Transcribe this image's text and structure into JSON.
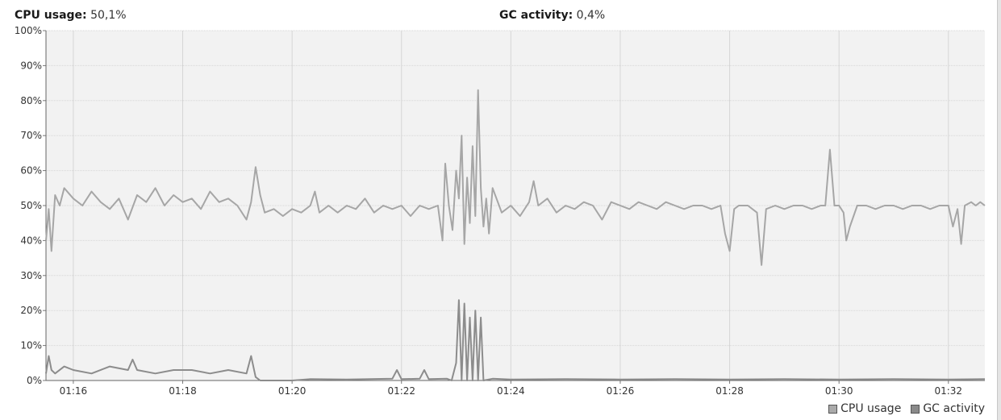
{
  "header": {
    "cpu_label": "CPU usage:",
    "cpu_value": "50,1%",
    "gc_label": "GC activity:",
    "gc_value": "0,4%"
  },
  "legend": {
    "cpu": "CPU usage",
    "gc": "GC activity"
  },
  "colors": {
    "cpu_series": "#a6a6a6",
    "gc_series": "#8c8c8c",
    "plot_background": "#f2f2f2",
    "grid": "#d6d6d6"
  },
  "chart_data": {
    "type": "line",
    "x_axis": {
      "unit": "time (hh:mm)",
      "min": "01:15:30",
      "max": "01:32:40"
    },
    "y_axis": {
      "min": 0,
      "max": 100,
      "unit": "%"
    },
    "y_ticks": [
      "0%",
      "10%",
      "20%",
      "30%",
      "40%",
      "50%",
      "60%",
      "70%",
      "80%",
      "90%",
      "100%"
    ],
    "x_ticks": [
      "01:16",
      "01:18",
      "01:20",
      "01:22",
      "01:24",
      "01:26",
      "01:28",
      "01:30",
      "01:32"
    ],
    "grid": true,
    "legend_position": "bottom-right",
    "series": [
      {
        "name": "CPU usage",
        "points": [
          [
            "01:15:30",
            40
          ],
          [
            "01:15:33",
            49
          ],
          [
            "01:15:36",
            37
          ],
          [
            "01:15:40",
            53
          ],
          [
            "01:15:45",
            50
          ],
          [
            "01:15:50",
            55
          ],
          [
            "01:16:00",
            52
          ],
          [
            "01:16:10",
            50
          ],
          [
            "01:16:20",
            54
          ],
          [
            "01:16:30",
            51
          ],
          [
            "01:16:40",
            49
          ],
          [
            "01:16:50",
            52
          ],
          [
            "01:17:00",
            46
          ],
          [
            "01:17:10",
            53
          ],
          [
            "01:17:20",
            51
          ],
          [
            "01:17:30",
            55
          ],
          [
            "01:17:40",
            50
          ],
          [
            "01:17:50",
            53
          ],
          [
            "01:18:00",
            51
          ],
          [
            "01:18:10",
            52
          ],
          [
            "01:18:20",
            49
          ],
          [
            "01:18:30",
            54
          ],
          [
            "01:18:40",
            51
          ],
          [
            "01:18:50",
            52
          ],
          [
            "01:19:00",
            50
          ],
          [
            "01:19:10",
            46
          ],
          [
            "01:19:15",
            51
          ],
          [
            "01:19:20",
            61
          ],
          [
            "01:19:25",
            53
          ],
          [
            "01:19:30",
            48
          ],
          [
            "01:19:40",
            49
          ],
          [
            "01:19:50",
            47
          ],
          [
            "01:20:00",
            49
          ],
          [
            "01:20:10",
            48
          ],
          [
            "01:20:20",
            50
          ],
          [
            "01:20:25",
            54
          ],
          [
            "01:20:30",
            48
          ],
          [
            "01:20:40",
            50
          ],
          [
            "01:20:50",
            48
          ],
          [
            "01:21:00",
            50
          ],
          [
            "01:21:10",
            49
          ],
          [
            "01:21:20",
            52
          ],
          [
            "01:21:30",
            48
          ],
          [
            "01:21:40",
            50
          ],
          [
            "01:21:50",
            49
          ],
          [
            "01:22:00",
            50
          ],
          [
            "01:22:10",
            47
          ],
          [
            "01:22:20",
            50
          ],
          [
            "01:22:30",
            49
          ],
          [
            "01:22:40",
            50
          ],
          [
            "01:22:45",
            40
          ],
          [
            "01:22:48",
            62
          ],
          [
            "01:22:52",
            50
          ],
          [
            "01:22:56",
            43
          ],
          [
            "01:23:00",
            60
          ],
          [
            "01:23:03",
            52
          ],
          [
            "01:23:06",
            70
          ],
          [
            "01:23:09",
            39
          ],
          [
            "01:23:12",
            58
          ],
          [
            "01:23:15",
            45
          ],
          [
            "01:23:18",
            67
          ],
          [
            "01:23:21",
            47
          ],
          [
            "01:23:24",
            83
          ],
          [
            "01:23:27",
            55
          ],
          [
            "01:23:30",
            44
          ],
          [
            "01:23:33",
            52
          ],
          [
            "01:23:36",
            42
          ],
          [
            "01:23:40",
            55
          ],
          [
            "01:23:50",
            48
          ],
          [
            "01:24:00",
            50
          ],
          [
            "01:24:10",
            47
          ],
          [
            "01:24:20",
            51
          ],
          [
            "01:24:25",
            57
          ],
          [
            "01:24:30",
            50
          ],
          [
            "01:24:40",
            52
          ],
          [
            "01:24:50",
            48
          ],
          [
            "01:25:00",
            50
          ],
          [
            "01:25:10",
            49
          ],
          [
            "01:25:20",
            51
          ],
          [
            "01:25:30",
            50
          ],
          [
            "01:25:40",
            46
          ],
          [
            "01:25:50",
            51
          ],
          [
            "01:26:00",
            50
          ],
          [
            "01:26:10",
            49
          ],
          [
            "01:26:20",
            51
          ],
          [
            "01:26:30",
            50
          ],
          [
            "01:26:40",
            49
          ],
          [
            "01:26:50",
            51
          ],
          [
            "01:27:00",
            50
          ],
          [
            "01:27:10",
            49
          ],
          [
            "01:27:20",
            50
          ],
          [
            "01:27:30",
            50
          ],
          [
            "01:27:40",
            49
          ],
          [
            "01:27:50",
            50
          ],
          [
            "01:27:55",
            42
          ],
          [
            "01:28:00",
            37
          ],
          [
            "01:28:05",
            49
          ],
          [
            "01:28:10",
            50
          ],
          [
            "01:28:20",
            50
          ],
          [
            "01:28:30",
            48
          ],
          [
            "01:28:35",
            33
          ],
          [
            "01:28:40",
            49
          ],
          [
            "01:28:50",
            50
          ],
          [
            "01:29:00",
            49
          ],
          [
            "01:29:10",
            50
          ],
          [
            "01:29:20",
            50
          ],
          [
            "01:29:30",
            49
          ],
          [
            "01:29:40",
            50
          ],
          [
            "01:29:45",
            50
          ],
          [
            "01:29:50",
            66
          ],
          [
            "01:29:55",
            50
          ],
          [
            "01:30:00",
            50
          ],
          [
            "01:30:05",
            48
          ],
          [
            "01:30:08",
            40
          ],
          [
            "01:30:12",
            44
          ],
          [
            "01:30:20",
            50
          ],
          [
            "01:30:30",
            50
          ],
          [
            "01:30:40",
            49
          ],
          [
            "01:30:50",
            50
          ],
          [
            "01:31:00",
            50
          ],
          [
            "01:31:10",
            49
          ],
          [
            "01:31:20",
            50
          ],
          [
            "01:31:30",
            50
          ],
          [
            "01:31:40",
            49
          ],
          [
            "01:31:50",
            50
          ],
          [
            "01:32:00",
            50
          ],
          [
            "01:32:05",
            44
          ],
          [
            "01:32:10",
            49
          ],
          [
            "01:32:14",
            39
          ],
          [
            "01:32:18",
            50
          ],
          [
            "01:32:25",
            51
          ],
          [
            "01:32:30",
            50
          ],
          [
            "01:32:35",
            51
          ],
          [
            "01:32:40",
            50
          ]
        ]
      },
      {
        "name": "GC activity",
        "points": [
          [
            "01:15:30",
            2
          ],
          [
            "01:15:33",
            7
          ],
          [
            "01:15:36",
            3
          ],
          [
            "01:15:40",
            2
          ],
          [
            "01:15:50",
            4
          ],
          [
            "01:16:00",
            3
          ],
          [
            "01:16:20",
            2
          ],
          [
            "01:16:40",
            4
          ],
          [
            "01:17:00",
            3
          ],
          [
            "01:17:05",
            6
          ],
          [
            "01:17:10",
            3
          ],
          [
            "01:17:30",
            2
          ],
          [
            "01:17:50",
            3
          ],
          [
            "01:18:10",
            3
          ],
          [
            "01:18:30",
            2
          ],
          [
            "01:18:50",
            3
          ],
          [
            "01:19:10",
            2
          ],
          [
            "01:19:15",
            7
          ],
          [
            "01:19:20",
            1
          ],
          [
            "01:19:25",
            0
          ],
          [
            "01:20:00",
            0
          ],
          [
            "01:20:20",
            0.4
          ],
          [
            "01:21:00",
            0.3
          ],
          [
            "01:21:50",
            0.5
          ],
          [
            "01:21:55",
            3
          ],
          [
            "01:22:00",
            0.4
          ],
          [
            "01:22:20",
            0.5
          ],
          [
            "01:22:25",
            3
          ],
          [
            "01:22:30",
            0.4
          ],
          [
            "01:22:50",
            0.5
          ],
          [
            "01:22:55",
            0
          ],
          [
            "01:23:00",
            5
          ],
          [
            "01:23:03",
            23
          ],
          [
            "01:23:06",
            0
          ],
          [
            "01:23:09",
            22
          ],
          [
            "01:23:12",
            0
          ],
          [
            "01:23:15",
            18
          ],
          [
            "01:23:18",
            0
          ],
          [
            "01:23:21",
            20
          ],
          [
            "01:23:24",
            0
          ],
          [
            "01:23:27",
            18
          ],
          [
            "01:23:30",
            0
          ],
          [
            "01:23:40",
            0.5
          ],
          [
            "01:24:00",
            0.3
          ],
          [
            "01:25:00",
            0.4
          ],
          [
            "01:26:00",
            0.3
          ],
          [
            "01:27:00",
            0.4
          ],
          [
            "01:28:00",
            0.3
          ],
          [
            "01:29:00",
            0.4
          ],
          [
            "01:30:00",
            0.3
          ],
          [
            "01:31:00",
            0.4
          ],
          [
            "01:32:00",
            0.3
          ],
          [
            "01:32:40",
            0.4
          ]
        ]
      }
    ]
  }
}
